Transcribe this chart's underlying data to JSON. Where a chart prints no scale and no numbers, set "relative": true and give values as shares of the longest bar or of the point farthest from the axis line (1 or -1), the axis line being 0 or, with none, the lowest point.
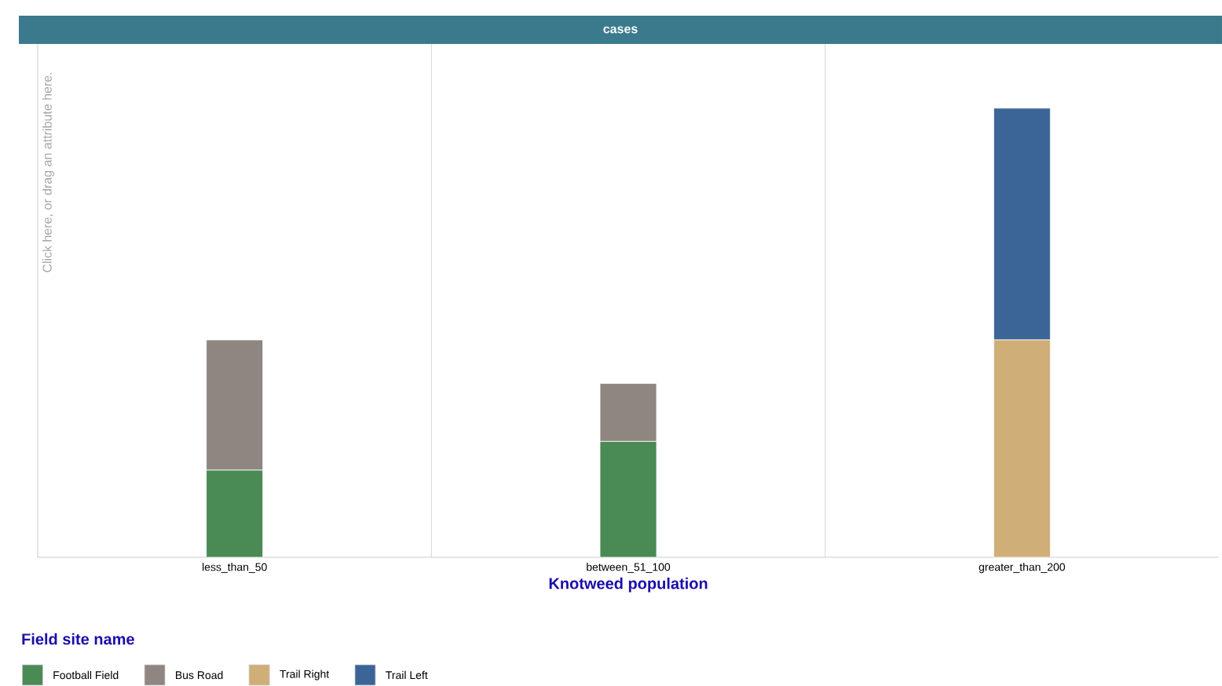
{
  "chart_data": {
    "type": "bar",
    "stacked": true,
    "relative": true,
    "title": "cases",
    "ylabel": "Click here, or drag an attribute here.",
    "xlabel": "Knotweed population",
    "legend_title": "Field site name",
    "legend": "bottom",
    "categories": [
      "less_than_50",
      "between_51_100",
      "greater_than_200"
    ],
    "series": [
      {
        "name": "Football Field",
        "color": "#4a8a55",
        "values": [
          0.194,
          0.258,
          0
        ]
      },
      {
        "name": "Bus Road",
        "color": "#8f8681",
        "values": [
          0.29,
          0.129,
          0
        ]
      },
      {
        "name": "Trail Right",
        "color": "#d0ae77",
        "values": [
          0,
          0,
          0.484
        ]
      },
      {
        "name": "Trail Left",
        "color": "#3a6596",
        "values": [
          0,
          0,
          0.516
        ]
      }
    ]
  }
}
